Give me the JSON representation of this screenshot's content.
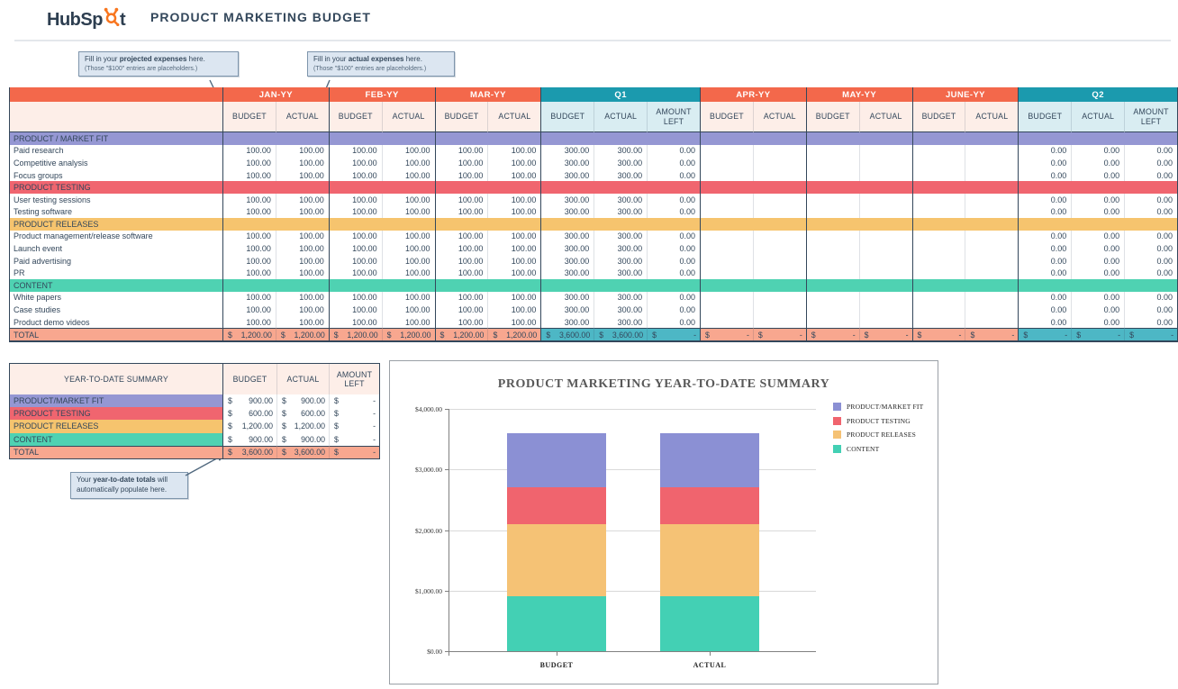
{
  "header": {
    "logo_prefix": "HubSp",
    "logo_suffix": "t",
    "logo_full": "HubSpot",
    "title": "PRODUCT MARKETING BUDGET"
  },
  "callouts": {
    "projected": {
      "pre": "Fill in your ",
      "bold": "projected expenses",
      "post": " here.",
      "line2": "(Those \"$100\" entries are placeholders.)"
    },
    "actual": {
      "pre": "Fill in your ",
      "bold": "actual expenses",
      "post": " here.",
      "line2": "(Those \"$100\" entries are placeholders.)"
    },
    "ytd": {
      "pre": "Your ",
      "bold": "year-to-date totals",
      "post": " will automatically populate here."
    }
  },
  "budget_table": {
    "column_groups": [
      {
        "label": "JAN-YY",
        "type": "month",
        "sub": [
          "BUDGET",
          "ACTUAL"
        ]
      },
      {
        "label": "FEB-YY",
        "type": "month",
        "sub": [
          "BUDGET",
          "ACTUAL"
        ]
      },
      {
        "label": "MAR-YY",
        "type": "month",
        "sub": [
          "BUDGET",
          "ACTUAL"
        ]
      },
      {
        "label": "Q1",
        "type": "quarter",
        "sub": [
          "BUDGET",
          "ACTUAL",
          "AMOUNT LEFT"
        ]
      },
      {
        "label": "APR-YY",
        "type": "month",
        "sub": [
          "BUDGET",
          "ACTUAL"
        ]
      },
      {
        "label": "MAY-YY",
        "type": "month",
        "sub": [
          "BUDGET",
          "ACTUAL"
        ]
      },
      {
        "label": "JUNE-YY",
        "type": "month",
        "sub": [
          "BUDGET",
          "ACTUAL"
        ]
      },
      {
        "label": "Q2",
        "type": "quarter",
        "sub": [
          "BUDGET",
          "ACTUAL",
          "AMOUNT LEFT"
        ]
      }
    ],
    "sections": [
      {
        "name": "PRODUCT / MARKET FIT",
        "color": "#9597d3",
        "items": [
          "Paid research",
          "Competitive analysis",
          "Focus groups"
        ]
      },
      {
        "name": "PRODUCT TESTING",
        "color": "#f0656f",
        "items": [
          "User testing sessions",
          "Testing software"
        ]
      },
      {
        "name": "PRODUCT RELEASES",
        "color": "#f6c46e",
        "items": [
          "Product management/release software",
          "Launch event",
          "Paid advertising",
          "PR"
        ]
      },
      {
        "name": "CONTENT",
        "color": "#4fd2b2",
        "items": [
          "White papers",
          "Case studies",
          "Product demo videos"
        ]
      }
    ],
    "item_values": [
      "100.00",
      "100.00",
      "100.00",
      "100.00",
      "100.00",
      "100.00",
      "300.00",
      "300.00",
      "0.00",
      "",
      "",
      "",
      "",
      "",
      "",
      "0.00",
      "0.00",
      "0.00"
    ],
    "total_label": "TOTAL",
    "total_values": [
      "$ 1,200.00",
      "$ 1,200.00",
      "$ 1,200.00",
      "$ 1,200.00",
      "$ 1,200.00",
      "$ 1,200.00",
      "$ 3,600.00",
      "$ 3,600.00",
      "$ -",
      "$ -",
      "$ -",
      "$ -",
      "$ -",
      "$ -",
      "$ -",
      "$ -",
      "$ -",
      "$ -"
    ]
  },
  "summary_table": {
    "title": "YEAR-TO-DATE SUMMARY",
    "columns": [
      "BUDGET",
      "ACTUAL",
      "AMOUNT LEFT"
    ],
    "rows": [
      {
        "label": "PRODUCT/MARKET FIT",
        "color": "#9597d3",
        "values": [
          "$ 900.00",
          "$ 900.00",
          "$ -"
        ]
      },
      {
        "label": "PRODUCT TESTING",
        "color": "#f0656f",
        "values": [
          "$ 600.00",
          "$ 600.00",
          "$ -"
        ]
      },
      {
        "label": "PRODUCT RELEASES",
        "color": "#f6c46e",
        "values": [
          "$ 1,200.00",
          "$ 1,200.00",
          "$ -"
        ]
      },
      {
        "label": "CONTENT",
        "color": "#4fd2b2",
        "values": [
          "$ 900.00",
          "$ 900.00",
          "$ -"
        ]
      }
    ],
    "total": {
      "label": "TOTAL",
      "values": [
        "$ 3,600.00",
        "$ 3,600.00",
        "$ -"
      ]
    }
  },
  "chart_data": {
    "type": "bar",
    "stacked": true,
    "title": "PRODUCT MARKETING YEAR-TO-DATE SUMMARY",
    "categories": [
      "BUDGET",
      "ACTUAL"
    ],
    "series": [
      {
        "name": "PRODUCT/MARKET FIT",
        "color": "#8b90d4",
        "values": [
          900,
          900
        ]
      },
      {
        "name": "PRODUCT TESTING",
        "color": "#f0646e",
        "values": [
          600,
          600
        ]
      },
      {
        "name": "PRODUCT RELEASES",
        "color": "#f5c275",
        "values": [
          1200,
          1200
        ]
      },
      {
        "name": "CONTENT",
        "color": "#43d0b4",
        "values": [
          900,
          900
        ]
      }
    ],
    "stack_order_bottom_to_top": [
      "CONTENT",
      "PRODUCT RELEASES",
      "PRODUCT TESTING",
      "PRODUCT/MARKET FIT"
    ],
    "xlabel": "",
    "ylabel": "",
    "ylim": [
      0,
      4000
    ],
    "ytick_step": 1000,
    "ytick_labels": [
      "$0.00",
      "$1,000.00",
      "$2,000.00",
      "$3,000.00",
      "$4,000.00"
    ],
    "grid": true,
    "legend_position": "right"
  },
  "colors": {
    "month_header": "#f3684b",
    "quarter_header": "#1b9aae",
    "subheader_month": "#fdeee8",
    "subheader_quarter": "#d9edf2",
    "total_row": "#f8a78f",
    "total_quarter_cell": "#4db7c5",
    "table_text": "#33475b",
    "logo_navy": "#2d3e50",
    "logo_orange": "#f8761f"
  }
}
